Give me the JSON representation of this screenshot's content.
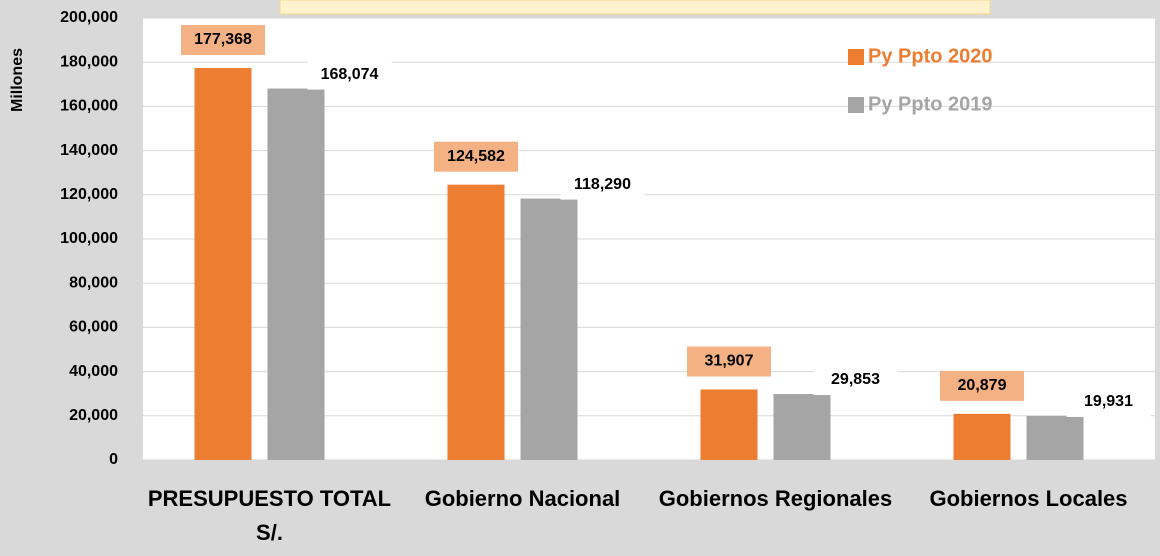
{
  "chart_data": {
    "type": "bar",
    "y_axis_label": "Millones",
    "categories": [
      "PRESUPUESTO TOTAL S/.",
      "Gobierno Nacional",
      "Gobiernos Regionales",
      "Gobiernos Locales"
    ],
    "series": [
      {
        "name": "Py Ppto 2020",
        "color": "#ed7d31",
        "values": [
          177368,
          124582,
          31907,
          20879
        ],
        "value_labels": [
          "177,368",
          "124,582",
          "31,907",
          "20,879"
        ]
      },
      {
        "name": "Py Ppto 2019",
        "color": "#a5a5a5",
        "values": [
          168074,
          118290,
          29853,
          19931
        ],
        "value_labels": [
          "168,074",
          "118,290",
          "29,853",
          "19,931"
        ]
      }
    ],
    "ylim": [
      0,
      200000
    ],
    "yticks": [
      {
        "value": 0,
        "label": "0"
      },
      {
        "value": 20000,
        "label": "20,000"
      },
      {
        "value": 40000,
        "label": "40,000"
      },
      {
        "value": 60000,
        "label": "60,000"
      },
      {
        "value": 80000,
        "label": "80,000"
      },
      {
        "value": 100000,
        "label": "100,000"
      },
      {
        "value": 120000,
        "label": "120,000"
      },
      {
        "value": 140000,
        "label": "140,000"
      },
      {
        "value": 160000,
        "label": "160,000"
      },
      {
        "value": 180000,
        "label": "180,000"
      },
      {
        "value": 200000,
        "label": "200,000"
      }
    ],
    "grid": true,
    "legend": "top-right"
  }
}
